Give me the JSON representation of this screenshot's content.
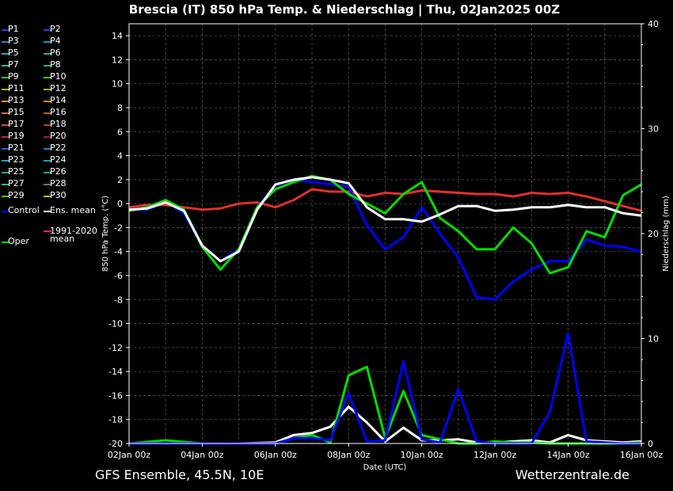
{
  "header": {
    "title": "Brescia  (IT)  850 hPa Temp. & Niederschlag | Thu, 02Jan2025 00Z"
  },
  "footer": {
    "model": "GFS Ensemble, 45.5N, 10E",
    "site": "Wetterzentrale.de"
  },
  "colors": {
    "background": "#000000",
    "grid": "#555555",
    "control": "#0000ff",
    "ens_mean": "#ffffff",
    "clim_mean": "#e03030",
    "oper": "#00dd00"
  },
  "legend": {
    "items": [
      {
        "label": "P1",
        "color": "#2a40d0"
      },
      {
        "label": "P2",
        "color": "#2244cc"
      },
      {
        "label": "P3",
        "color": "#3a7ad0"
      },
      {
        "label": "P4",
        "color": "#2a90c8"
      },
      {
        "label": "P5",
        "color": "#2aa8b0"
      },
      {
        "label": "P6",
        "color": "#22b080"
      },
      {
        "label": "P7",
        "color": "#2ab890"
      },
      {
        "label": "P8",
        "color": "#30b060"
      },
      {
        "label": "P9",
        "color": "#30c040"
      },
      {
        "label": "P10",
        "color": "#50c020"
      },
      {
        "label": "P11",
        "color": "#a0b020"
      },
      {
        "label": "P12",
        "color": "#c0a020"
      },
      {
        "label": "P13",
        "color": "#c8a030"
      },
      {
        "label": "P14",
        "color": "#d09020"
      },
      {
        "label": "P15",
        "color": "#d07040"
      },
      {
        "label": "P16",
        "color": "#b06030"
      },
      {
        "label": "P17",
        "color": "#c05030"
      },
      {
        "label": "P18",
        "color": "#b04020"
      },
      {
        "label": "P19",
        "color": "#c03030"
      },
      {
        "label": "P20",
        "color": "#a02020"
      },
      {
        "label": "P21",
        "color": "#2a60c0"
      },
      {
        "label": "P22",
        "color": "#2a80c0"
      },
      {
        "label": "P23",
        "color": "#2aa0c0"
      },
      {
        "label": "P24",
        "color": "#20a0a0"
      },
      {
        "label": "P25",
        "color": "#20b070"
      },
      {
        "label": "P26",
        "color": "#20b050"
      },
      {
        "label": "P27",
        "color": "#30c060"
      },
      {
        "label": "P28",
        "color": "#30a030"
      },
      {
        "label": "P29",
        "color": "#60c020"
      },
      {
        "label": "P30",
        "color": "#c0c020"
      }
    ],
    "control_label": "Control",
    "ens_mean_label": "Ens. mean",
    "clim_label": "1991-2020 mean",
    "oper_label": "Oper"
  },
  "chart_data": {
    "type": "line",
    "xlabel": "Date (UTC)",
    "ylabel_left": "850 hPa Temp. (°C)",
    "ylabel_right": "Niederschlag (mm)",
    "x_ticks": [
      "02Jan 00z",
      "04Jan 00z",
      "06Jan 00z",
      "08Jan 00z",
      "10Jan 00z",
      "12Jan 00z",
      "14Jan 00z",
      "16Jan 00z"
    ],
    "x_range_days": [
      0,
      14
    ],
    "ylim_left": [
      -20,
      15
    ],
    "yticks_left": [
      14,
      12,
      10,
      8,
      6,
      4,
      2,
      0,
      -2,
      -4,
      -6,
      -8,
      -10,
      -12,
      -14,
      -16,
      -18,
      -20
    ],
    "ylim_right": [
      0,
      40
    ],
    "yticks_right": [
      0,
      10,
      20,
      30,
      40
    ],
    "grid": true,
    "temperature_series": [
      {
        "name": "Control",
        "x": [
          0,
          0.5,
          1,
          1.5,
          2,
          2.5,
          3,
          3.5,
          4,
          4.5,
          5,
          5.5,
          6,
          6.5,
          7,
          7.5,
          8,
          8.5,
          9,
          9.5,
          10,
          10.5,
          11,
          11.5,
          12,
          12.5,
          13,
          13.5,
          14
        ],
        "values": [
          -0.5,
          -0.5,
          0.2,
          -0.8,
          -3.5,
          -4.8,
          -3.8,
          -0.3,
          1.5,
          2.0,
          1.8,
          1.6,
          1.4,
          -1.8,
          -3.8,
          -2.8,
          -0.3,
          -2.5,
          -4.5,
          -7.8,
          -8.0,
          -6.5,
          -5.5,
          -4.8,
          -4.8,
          -3.0,
          -3.5,
          -3.6,
          -4.0
        ]
      },
      {
        "name": "Oper",
        "x": [
          0,
          0.5,
          1,
          1.5,
          2,
          2.5,
          3,
          3.5,
          4,
          4.5,
          5,
          5.5,
          6,
          6.5,
          7,
          7.5,
          8,
          8.5,
          9,
          9.5,
          10,
          10.5,
          11,
          11.5,
          12,
          12.5,
          13,
          13.5,
          14
        ],
        "values": [
          -0.6,
          -0.3,
          0.3,
          -0.5,
          -3.6,
          -5.5,
          -3.8,
          -0.3,
          1.2,
          1.8,
          2.3,
          2.0,
          0.8,
          0.0,
          -0.8,
          0.8,
          1.8,
          -1.2,
          -2.3,
          -3.8,
          -3.8,
          -2.0,
          -3.3,
          -5.8,
          -5.3,
          -2.3,
          -2.8,
          0.7,
          1.6
        ]
      },
      {
        "name": "Ens. mean",
        "x": [
          0,
          0.5,
          1,
          1.5,
          2,
          2.5,
          3,
          3.5,
          4,
          4.5,
          5,
          5.5,
          6,
          6.5,
          7,
          7.5,
          8,
          8.5,
          9,
          9.5,
          10,
          10.5,
          11,
          11.5,
          12,
          12.5,
          13,
          13.5,
          14
        ],
        "values": [
          -0.5,
          -0.4,
          0.1,
          -0.6,
          -3.5,
          -4.8,
          -4.0,
          -0.5,
          1.6,
          2.0,
          2.2,
          2.0,
          1.7,
          -0.3,
          -1.3,
          -1.3,
          -1.5,
          -0.9,
          -0.2,
          -0.2,
          -0.6,
          -0.5,
          -0.3,
          -0.3,
          -0.1,
          -0.3,
          -0.3,
          -0.8,
          -1.0
        ]
      },
      {
        "name": "1991-2020 mean",
        "x": [
          0,
          0.5,
          1,
          1.5,
          2,
          2.5,
          3,
          3.5,
          4,
          4.5,
          5,
          5.5,
          6,
          6.5,
          7,
          7.5,
          8,
          8.5,
          9,
          9.5,
          10,
          10.5,
          11,
          11.5,
          12,
          12.5,
          13,
          13.5,
          14
        ],
        "values": [
          -0.3,
          -0.1,
          -0.1,
          -0.3,
          -0.5,
          -0.4,
          0.0,
          0.1,
          -0.3,
          0.3,
          1.2,
          1.0,
          1.0,
          0.6,
          0.9,
          0.8,
          1.1,
          1.0,
          0.9,
          0.8,
          0.8,
          0.6,
          0.9,
          0.8,
          0.9,
          0.6,
          0.2,
          -0.2,
          -0.6
        ]
      }
    ],
    "precip_series": [
      {
        "name": "Ens. mean",
        "x": [
          0,
          1,
          2,
          3,
          4,
          4.5,
          5,
          5.5,
          6,
          6.5,
          7,
          7.5,
          8,
          8.5,
          9,
          9.5,
          10,
          10.5,
          11,
          11.5,
          12,
          12.5,
          13,
          13.5,
          14
        ],
        "values": [
          0,
          0,
          0,
          0,
          0.1,
          0.8,
          1.0,
          1.6,
          3.5,
          2.0,
          0.2,
          1.5,
          0.3,
          0.3,
          0.4,
          0.1,
          0.1,
          0.2,
          0.3,
          0.1,
          0.8,
          0.3,
          0.2,
          0.1,
          0.2
        ]
      },
      {
        "name": "Oper",
        "x": [
          0,
          1,
          2,
          3,
          4,
          4.5,
          5,
          5.5,
          6,
          6.5,
          7,
          7.5,
          8,
          8.5,
          9,
          9.5,
          10,
          10.5,
          11,
          11.5,
          12,
          12.5,
          13,
          13.5,
          14
        ],
        "values": [
          0,
          0.3,
          0,
          0,
          0,
          0.5,
          0.8,
          0.1,
          6.5,
          7.3,
          0.5,
          5.0,
          0.8,
          0.4,
          0,
          0,
          0.2,
          0.1,
          0.1,
          0,
          0,
          0,
          0,
          0,
          0.1
        ]
      },
      {
        "name": "Control",
        "x": [
          0,
          1,
          2,
          3,
          4,
          4.5,
          5,
          5.5,
          6,
          6.5,
          7,
          7.5,
          8,
          8.5,
          9,
          9.5,
          10,
          10.5,
          11,
          11.5,
          12,
          12.5,
          13,
          13.5,
          14
        ],
        "values": [
          0,
          0,
          0,
          0,
          0,
          0.5,
          0.5,
          0.3,
          4.8,
          0.2,
          0.3,
          7.8,
          0.4,
          0.1,
          5.2,
          0.2,
          0,
          0,
          0,
          3.0,
          10.5,
          0.2,
          0.1,
          0,
          0
        ]
      }
    ]
  }
}
